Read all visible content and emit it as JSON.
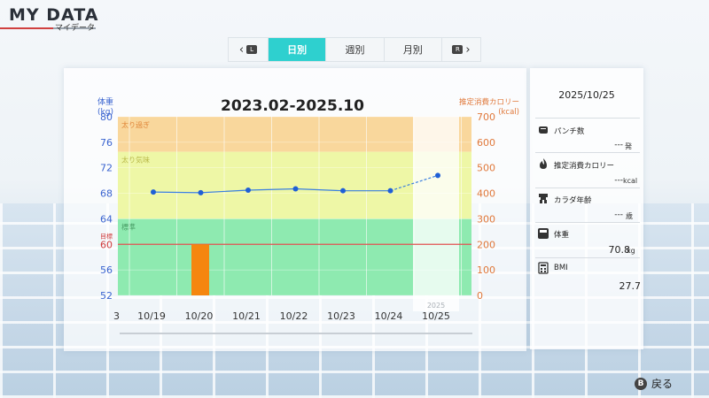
{
  "header": {
    "title": "MY DATA",
    "subtitle": "マイデータ"
  },
  "tabs": {
    "prev_button": "L",
    "next_button": "R",
    "items": [
      {
        "label": "日別",
        "active": true
      },
      {
        "label": "週別",
        "active": false
      },
      {
        "label": "月別",
        "active": false
      }
    ]
  },
  "chart_data": {
    "type": "line",
    "title": "2023.02-2025.10",
    "left_axis": {
      "label_line1": "体重",
      "label_line2": "(kg)",
      "ticks": [
        "80",
        "76",
        "72",
        "68",
        "64",
        "60",
        "56",
        "52"
      ],
      "range": [
        52,
        80
      ],
      "color": "#3a64d0"
    },
    "right_axis": {
      "label_line1": "推定消費カロリー",
      "label_line2": "(kcal)",
      "ticks": [
        "700",
        "600",
        "500",
        "400",
        "300",
        "200",
        "100",
        "0"
      ],
      "range": [
        0,
        700
      ],
      "color": "#e0783a"
    },
    "categories": [
      "10/19",
      "10/20",
      "10/21",
      "10/22",
      "10/23",
      "10/24",
      "10/25"
    ],
    "left_cut_label": "3",
    "year_label": "2025",
    "bands": [
      {
        "label": "太り過ぎ",
        "from": 74.5,
        "to": 80
      },
      {
        "label": "太り気味",
        "from": 64,
        "to": 74.5
      },
      {
        "label": "標準",
        "from": 52,
        "to": 64
      }
    ],
    "target": {
      "label": "目標",
      "value": 60
    },
    "series": [
      {
        "name": "体重",
        "values": [
          68.2,
          68.1,
          68.5,
          68.7,
          68.4,
          68.4,
          70.8
        ]
      },
      {
        "name": "推定消費カロリー",
        "values": [
          0,
          200,
          0,
          0,
          0,
          0,
          0
        ]
      }
    ]
  },
  "side_panel": {
    "date": "2025/10/25",
    "stats": [
      {
        "icon": "punch-icon",
        "label": "パンチ数",
        "value": "---",
        "unit": "発"
      },
      {
        "icon": "flame-icon",
        "label": "推定消費カロリー",
        "value": "---",
        "unit": "kcal"
      },
      {
        "icon": "body-icon",
        "label": "カラダ年齢",
        "value": "---",
        "unit": "歳"
      },
      {
        "icon": "scale-icon",
        "label": "体重",
        "value": "70.8",
        "unit": "kg"
      },
      {
        "icon": "calculator-icon",
        "label": "BMI",
        "value": "27.7",
        "unit": ""
      }
    ]
  },
  "footer": {
    "back_button": "B",
    "back_label": "戻る"
  }
}
